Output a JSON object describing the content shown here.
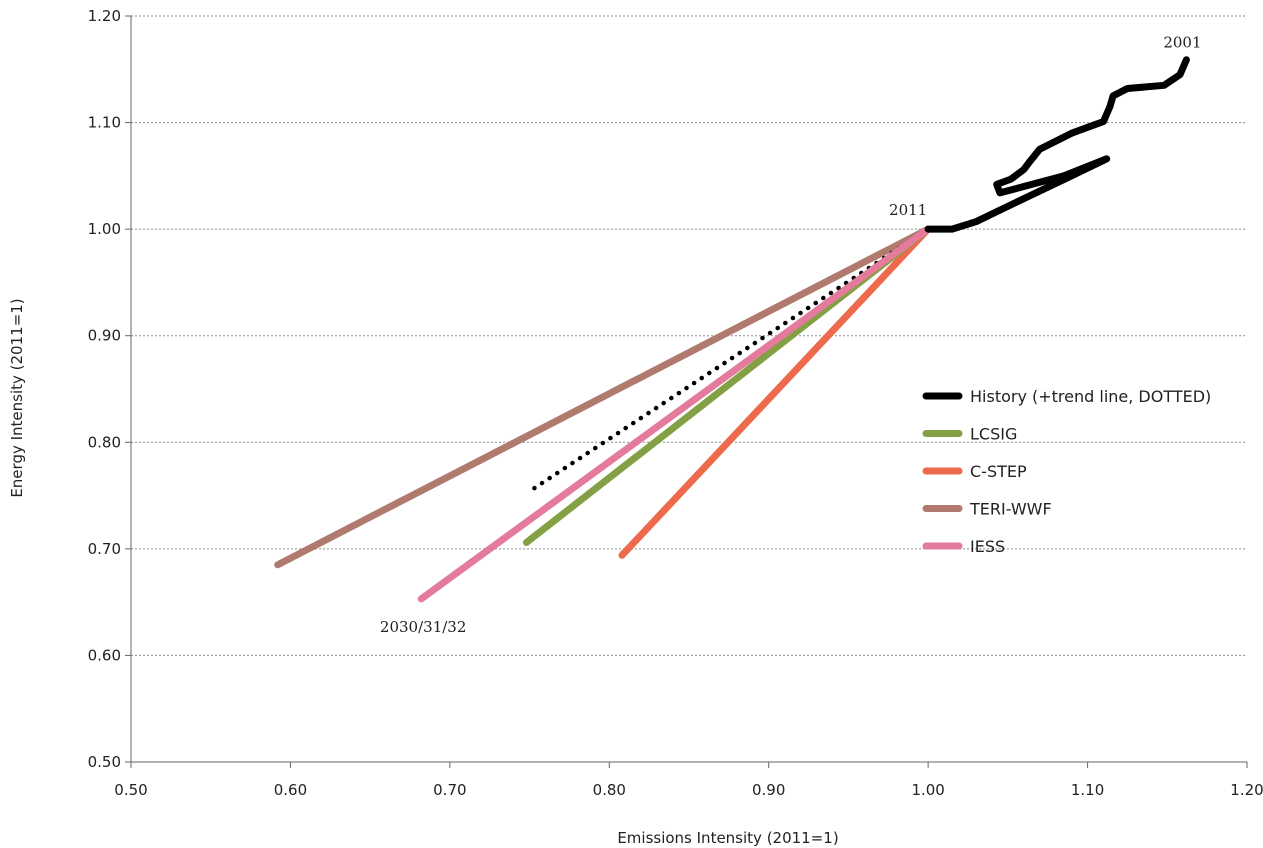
{
  "chart_data": {
    "type": "line",
    "xlabel": "Emissions Intensity (2011=1)",
    "ylabel": "Energy Intensity (2011=1)",
    "xlim": [
      0.5,
      1.2
    ],
    "ylim": [
      0.5,
      1.2
    ],
    "x_ticks": [
      "0.50",
      "0.60",
      "0.70",
      "0.80",
      "0.90",
      "1.00",
      "1.10",
      "1.20"
    ],
    "y_ticks": [
      "0.50",
      "0.60",
      "0.70",
      "0.80",
      "0.90",
      "1.00",
      "1.10",
      "1.20"
    ],
    "grid": "horizontal dashed",
    "legend_position": "right",
    "series": [
      {
        "name": "History (+trend line, DOTTED)",
        "color": "#000000",
        "points": [
          [
            1.162,
            1.159
          ],
          [
            1.158,
            1.145
          ],
          [
            1.148,
            1.135
          ],
          [
            1.125,
            1.132
          ],
          [
            1.116,
            1.125
          ],
          [
            1.114,
            1.115
          ],
          [
            1.11,
            1.101
          ],
          [
            1.09,
            1.09
          ],
          [
            1.07,
            1.075
          ],
          [
            1.063,
            1.062
          ],
          [
            1.06,
            1.056
          ],
          [
            1.052,
            1.047
          ],
          [
            1.043,
            1.042
          ],
          [
            1.045,
            1.034
          ],
          [
            1.06,
            1.04
          ],
          [
            1.085,
            1.05
          ],
          [
            1.112,
            1.066
          ],
          [
            1.09,
            1.05
          ],
          [
            1.055,
            1.025
          ],
          [
            1.03,
            1.007
          ],
          [
            1.015,
            1.0
          ],
          [
            1.0,
            1.0
          ]
        ]
      },
      {
        "name": "History trend",
        "color": "#000000",
        "dotted": true,
        "points": [
          [
            0.753,
            0.757
          ],
          [
            1.0,
            1.0
          ]
        ]
      },
      {
        "name": "LCSIG",
        "color": "#84a044",
        "points": [
          [
            0.748,
            0.706
          ],
          [
            1.0,
            1.0
          ]
        ]
      },
      {
        "name": "C-STEP",
        "color": "#ee6a4c",
        "points": [
          [
            0.808,
            0.694
          ],
          [
            1.0,
            1.0
          ]
        ]
      },
      {
        "name": "TERI-WWF",
        "color": "#b07a6e",
        "points": [
          [
            0.592,
            0.685
          ],
          [
            1.0,
            1.0
          ]
        ]
      },
      {
        "name": "IESS",
        "color": "#e47a9c",
        "points": [
          [
            0.682,
            0.653
          ],
          [
            1.0,
            1.0
          ]
        ]
      }
    ],
    "legend": [
      {
        "label": "History (+trend line, DOTTED)",
        "color": "#000000"
      },
      {
        "label": "LCSIG",
        "color": "#84a044"
      },
      {
        "label": "C-STEP",
        "color": "#ee6a4c"
      },
      {
        "label": "TERI-WWF",
        "color": "#b07a6e"
      },
      {
        "label": "IESS",
        "color": "#e47a9c"
      }
    ],
    "annotations": [
      {
        "text": "2001",
        "x": 1.162,
        "y": 1.159
      },
      {
        "text": "2011",
        "x": 1.0,
        "y": 1.0
      },
      {
        "text": "2030/31/32",
        "x": 0.682,
        "y": 0.653
      }
    ]
  }
}
